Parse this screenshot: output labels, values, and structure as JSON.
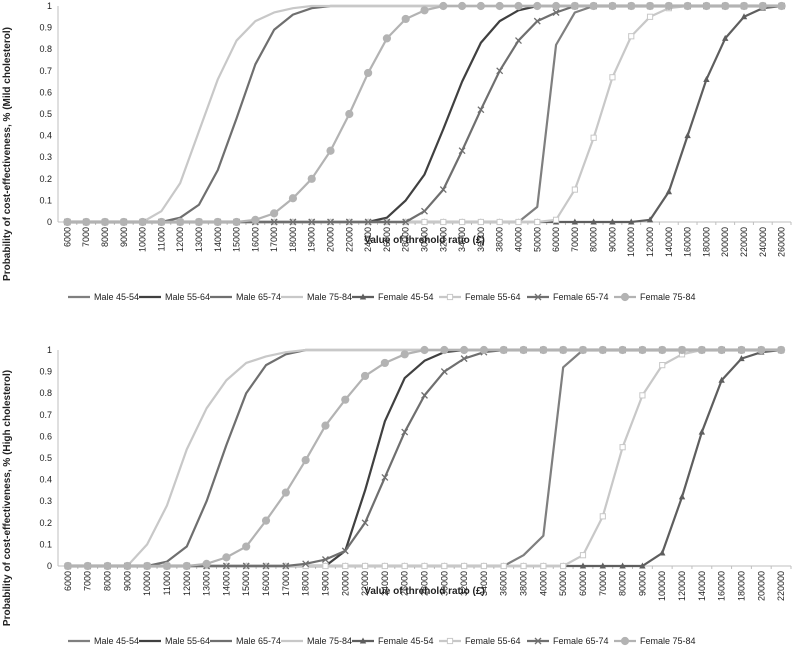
{
  "chart_data": [
    {
      "type": "line",
      "title": "",
      "xlabel": "Value of threhold ratio (£)",
      "ylabel": "Probability of cost-effectiveness, % (Mild cholesterol)",
      "ylim": [
        0,
        1
      ],
      "yticks": [
        "0",
        "0.1",
        "0.2",
        "0.3",
        "0.4",
        "0.5",
        "0.6",
        "0.7",
        "0.8",
        "0.9",
        "1"
      ],
      "x": [
        "6000",
        "7000",
        "8000",
        "9000",
        "10000",
        "11000",
        "12000",
        "13000",
        "14000",
        "15000",
        "16000",
        "17000",
        "18000",
        "19000",
        "20000",
        "22000",
        "24000",
        "26000",
        "28000",
        "30000",
        "32000",
        "34000",
        "36000",
        "38000",
        "40000",
        "50000",
        "60000",
        "70000",
        "80000",
        "90000",
        "100000",
        "120000",
        "140000",
        "160000",
        "180000",
        "200000",
        "220000",
        "240000",
        "260000"
      ],
      "legend_position": "bottom",
      "grid": false,
      "series": [
        {
          "name": "Male 45-54",
          "color": "#7f7f7f",
          "marker": "none",
          "values": [
            0,
            0,
            0,
            0,
            0,
            0,
            0,
            0,
            0,
            0,
            0,
            0,
            0,
            0,
            0,
            0,
            0,
            0,
            0,
            0,
            0,
            0,
            0,
            0,
            0,
            0.07,
            0.82,
            0.97,
            1,
            1,
            1,
            1,
            1,
            1,
            1,
            1,
            1,
            1,
            1
          ]
        },
        {
          "name": "Male 55-64",
          "color": "#404040",
          "marker": "none",
          "values": [
            0,
            0,
            0,
            0,
            0,
            0,
            0,
            0,
            0,
            0,
            0,
            0,
            0,
            0,
            0,
            0,
            0,
            0.02,
            0.1,
            0.22,
            0.43,
            0.65,
            0.83,
            0.93,
            0.98,
            1,
            1,
            1,
            1,
            1,
            1,
            1,
            1,
            1,
            1,
            1,
            1,
            1,
            1
          ]
        },
        {
          "name": "Male 65-74",
          "color": "#6f6f6f",
          "marker": "none",
          "values": [
            0,
            0,
            0,
            0,
            0,
            0,
            0.02,
            0.08,
            0.24,
            0.48,
            0.73,
            0.89,
            0.96,
            0.99,
            1,
            1,
            1,
            1,
            1,
            1,
            1,
            1,
            1,
            1,
            1,
            1,
            1,
            1,
            1,
            1,
            1,
            1,
            1,
            1,
            1,
            1,
            1,
            1,
            1
          ]
        },
        {
          "name": "Male 75-84",
          "color": "#c8c8c8",
          "marker": "none",
          "values": [
            0,
            0,
            0,
            0,
            0,
            0.05,
            0.18,
            0.42,
            0.66,
            0.84,
            0.93,
            0.97,
            0.99,
            1,
            1,
            1,
            1,
            1,
            1,
            1,
            1,
            1,
            1,
            1,
            1,
            1,
            1,
            1,
            1,
            1,
            1,
            1,
            1,
            1,
            1,
            1,
            1,
            1,
            1
          ]
        },
        {
          "name": "Female 45-54",
          "color": "#5e5e5e",
          "marker": "triangle",
          "values": [
            0,
            0,
            0,
            0,
            0,
            0,
            0,
            0,
            0,
            0,
            0,
            0,
            0,
            0,
            0,
            0,
            0,
            0,
            0,
            0,
            0,
            0,
            0,
            0,
            0,
            0,
            0,
            0,
            0,
            0,
            0,
            0.01,
            0.14,
            0.4,
            0.66,
            0.85,
            0.95,
            0.99,
            1
          ]
        },
        {
          "name": "Female 55-64",
          "color": "#c8c8c8",
          "marker": "square",
          "values": [
            0,
            0,
            0,
            0,
            0,
            0,
            0,
            0,
            0,
            0,
            0,
            0,
            0,
            0,
            0,
            0,
            0,
            0,
            0,
            0,
            0,
            0,
            0,
            0,
            0,
            0,
            0.01,
            0.15,
            0.39,
            0.67,
            0.86,
            0.95,
            0.99,
            1,
            1,
            1,
            1,
            1,
            1
          ]
        },
        {
          "name": "Female 65-74",
          "color": "#6f6f6f",
          "marker": "x",
          "values": [
            0,
            0,
            0,
            0,
            0,
            0,
            0,
            0,
            0,
            0,
            0,
            0,
            0,
            0,
            0,
            0,
            0,
            0,
            0,
            0.05,
            0.15,
            0.33,
            0.52,
            0.7,
            0.84,
            0.93,
            0.97,
            1,
            1,
            1,
            1,
            1,
            1,
            1,
            1,
            1,
            1,
            1,
            1
          ]
        },
        {
          "name": "Female 75-84",
          "color": "#b3b3b3",
          "marker": "circle",
          "values": [
            0,
            0,
            0,
            0,
            0,
            0,
            0,
            0,
            0,
            0,
            0.01,
            0.04,
            0.11,
            0.2,
            0.33,
            0.5,
            0.69,
            0.85,
            0.94,
            0.98,
            1,
            1,
            1,
            1,
            1,
            1,
            1,
            1,
            1,
            1,
            1,
            1,
            1,
            1,
            1,
            1,
            1,
            1,
            1
          ]
        }
      ]
    },
    {
      "type": "line",
      "title": "",
      "xlabel": "Value of threhold ratio (£)",
      "ylabel": "Probability of cost-effectiveness, % (High cholesterol)",
      "ylim": [
        0,
        1
      ],
      "yticks": [
        "0",
        "0.1",
        "0.2",
        "0.3",
        "0.4",
        "0.5",
        "0.6",
        "0.7",
        "0.8",
        "0.9",
        "1"
      ],
      "x": [
        "6000",
        "7000",
        "8000",
        "9000",
        "10000",
        "11000",
        "12000",
        "13000",
        "14000",
        "15000",
        "16000",
        "17000",
        "18000",
        "19000",
        "20000",
        "22000",
        "24000",
        "26000",
        "28000",
        "30000",
        "32000",
        "34000",
        "36000",
        "38000",
        "40000",
        "50000",
        "60000",
        "70000",
        "80000",
        "90000",
        "100000",
        "120000",
        "140000",
        "160000",
        "180000",
        "200000",
        "220000"
      ],
      "legend_position": "bottom",
      "grid": false,
      "series": [
        {
          "name": "Male 45-54",
          "color": "#7f7f7f",
          "marker": "none",
          "values": [
            0,
            0,
            0,
            0,
            0,
            0,
            0,
            0,
            0,
            0,
            0,
            0,
            0,
            0,
            0,
            0,
            0,
            0,
            0,
            0,
            0,
            0,
            0,
            0.05,
            0.14,
            0.92,
            1,
            1,
            1,
            1,
            1,
            1,
            1,
            1,
            1,
            1,
            1
          ]
        },
        {
          "name": "Male 55-64",
          "color": "#404040",
          "marker": "none",
          "values": [
            0,
            0,
            0,
            0,
            0,
            0,
            0,
            0,
            0,
            0,
            0,
            0,
            0,
            0,
            0.07,
            0.35,
            0.67,
            0.87,
            0.95,
            0.99,
            1,
            1,
            1,
            1,
            1,
            1,
            1,
            1,
            1,
            1,
            1,
            1,
            1,
            1,
            1,
            1,
            1
          ]
        },
        {
          "name": "Male 65-74",
          "color": "#6f6f6f",
          "marker": "none",
          "values": [
            0,
            0,
            0,
            0,
            0,
            0.02,
            0.09,
            0.3,
            0.56,
            0.8,
            0.93,
            0.98,
            1,
            1,
            1,
            1,
            1,
            1,
            1,
            1,
            1,
            1,
            1,
            1,
            1,
            1,
            1,
            1,
            1,
            1,
            1,
            1,
            1,
            1,
            1,
            1,
            1
          ]
        },
        {
          "name": "Male 75-84",
          "color": "#c8c8c8",
          "marker": "none",
          "values": [
            0,
            0,
            0,
            0,
            0.1,
            0.28,
            0.54,
            0.73,
            0.86,
            0.94,
            0.97,
            0.99,
            1,
            1,
            1,
            1,
            1,
            1,
            1,
            1,
            1,
            1,
            1,
            1,
            1,
            1,
            1,
            1,
            1,
            1,
            1,
            1,
            1,
            1,
            1,
            1,
            1
          ]
        },
        {
          "name": "Female 45-54",
          "color": "#5e5e5e",
          "marker": "triangle",
          "values": [
            0,
            0,
            0,
            0,
            0,
            0,
            0,
            0,
            0,
            0,
            0,
            0,
            0,
            0,
            0,
            0,
            0,
            0,
            0,
            0,
            0,
            0,
            0,
            0,
            0,
            0,
            0,
            0,
            0,
            0,
            0.06,
            0.32,
            0.62,
            0.86,
            0.96,
            0.99,
            1
          ]
        },
        {
          "name": "Female 55-64",
          "color": "#c8c8c8",
          "marker": "square",
          "values": [
            0,
            0,
            0,
            0,
            0,
            0,
            0,
            0,
            0,
            0,
            0,
            0,
            0,
            0,
            0,
            0,
            0,
            0,
            0,
            0,
            0,
            0,
            0,
            0,
            0,
            0,
            0.05,
            0.23,
            0.55,
            0.79,
            0.93,
            0.98,
            1,
            1,
            1,
            1,
            1
          ]
        },
        {
          "name": "Female 65-74",
          "color": "#6f6f6f",
          "marker": "x",
          "values": [
            0,
            0,
            0,
            0,
            0,
            0,
            0,
            0,
            0,
            0,
            0,
            0,
            0.01,
            0.03,
            0.07,
            0.2,
            0.41,
            0.62,
            0.79,
            0.9,
            0.96,
            0.99,
            1,
            1,
            1,
            1,
            1,
            1,
            1,
            1,
            1,
            1,
            1,
            1,
            1,
            1,
            1
          ]
        },
        {
          "name": "Female 75-84",
          "color": "#b3b3b3",
          "marker": "circle",
          "values": [
            0,
            0,
            0,
            0,
            0,
            0,
            0,
            0.01,
            0.04,
            0.09,
            0.21,
            0.34,
            0.49,
            0.65,
            0.77,
            0.88,
            0.94,
            0.98,
            1,
            1,
            1,
            1,
            1,
            1,
            1,
            1,
            1,
            1,
            1,
            1,
            1,
            1,
            1,
            1,
            1,
            1,
            1
          ]
        }
      ]
    }
  ]
}
